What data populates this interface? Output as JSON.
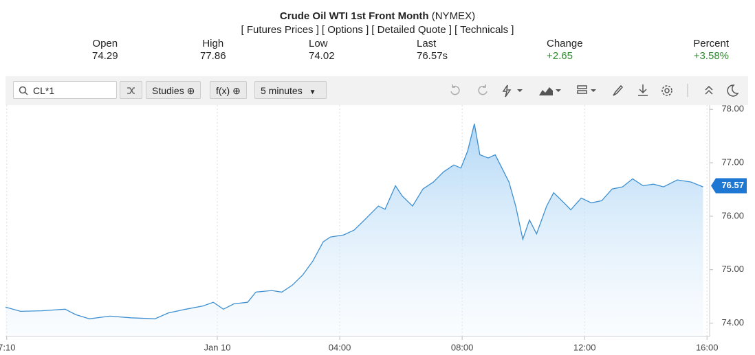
{
  "header": {
    "title": "Crude Oil WTI 1st Front Month",
    "exchange": "(NYMEX)",
    "links": [
      "[ Futures Prices ]",
      "[ Options ]",
      "[ Detailed Quote ]",
      "[ Technicals ]"
    ],
    "quote": [
      {
        "label": "Open",
        "value": "74.29"
      },
      {
        "label": "High",
        "value": "77.86"
      },
      {
        "label": "Low",
        "value": "74.02"
      },
      {
        "label": "Last",
        "value": "76.57s"
      },
      {
        "label": "Change",
        "value": "+2.65"
      },
      {
        "label": "Percent",
        "value": "+3.58%"
      }
    ]
  },
  "toolbar": {
    "symbol": "CL*1",
    "studies": "Studies",
    "fx": "f(x)",
    "interval": "5 minutes"
  },
  "chart_data": {
    "type": "line",
    "color": "#3d8fd1",
    "x": [
      -6.92,
      -6.43,
      -5.75,
      -4.97,
      -4.63,
      -4.18,
      -3.51,
      -2.83,
      -2.04,
      -1.6,
      -1.03,
      -0.47,
      -0.13,
      0.2,
      0.54,
      0.99,
      1.26,
      1.78,
      2.11,
      2.45,
      2.79,
      3.12,
      3.46,
      3.69,
      4.13,
      4.47,
      4.81,
      5.26,
      5.48,
      5.82,
      6.04,
      6.38,
      6.72,
      7.06,
      7.39,
      7.73,
      7.96,
      8.18,
      8.4,
      8.58,
      8.85,
      9.08,
      9.3,
      9.53,
      9.75,
      9.98,
      10.2,
      10.43,
      10.76,
      10.99,
      11.33,
      11.55,
      11.89,
      12.22,
      12.56,
      12.9,
      13.24,
      13.57,
      13.91,
      14.25,
      14.58,
      15.03,
      15.48,
      15.87
    ],
    "values": [
      74.3,
      74.22,
      74.23,
      74.26,
      74.16,
      74.08,
      74.13,
      74.1,
      74.08,
      74.19,
      74.26,
      74.32,
      74.39,
      74.26,
      74.36,
      74.39,
      74.58,
      74.61,
      74.58,
      74.71,
      74.9,
      75.16,
      75.52,
      75.61,
      75.65,
      75.74,
      75.93,
      76.19,
      76.13,
      76.57,
      76.38,
      76.19,
      76.51,
      76.64,
      76.83,
      76.96,
      76.9,
      77.22,
      77.73,
      77.15,
      77.09,
      77.15,
      76.9,
      76.64,
      76.19,
      75.57,
      75.93,
      75.67,
      76.19,
      76.44,
      76.25,
      76.12,
      76.34,
      76.25,
      76.29,
      76.51,
      76.55,
      76.7,
      76.57,
      76.6,
      76.55,
      76.68,
      76.64,
      76.55
    ],
    "last_price": 76.57,
    "xlim": [
      -6.92,
      16.04
    ],
    "ylim": [
      73.75,
      78.08
    ],
    "xticks": [
      {
        "value": -6.88,
        "label": "7:10"
      },
      {
        "value": 0,
        "label": "Jan 10"
      },
      {
        "value": 4,
        "label": "04:00"
      },
      {
        "value": 8,
        "label": "08:00"
      },
      {
        "value": 12,
        "label": "12:00"
      },
      {
        "value": 16,
        "label": "16:00"
      }
    ],
    "yticks": [
      {
        "value": 74,
        "label": "74.00"
      },
      {
        "value": 75,
        "label": "75.00"
      },
      {
        "value": 76,
        "label": "76.00"
      },
      {
        "value": 77,
        "label": "77.00"
      },
      {
        "value": 78,
        "label": "78.00"
      }
    ],
    "grid": true
  }
}
